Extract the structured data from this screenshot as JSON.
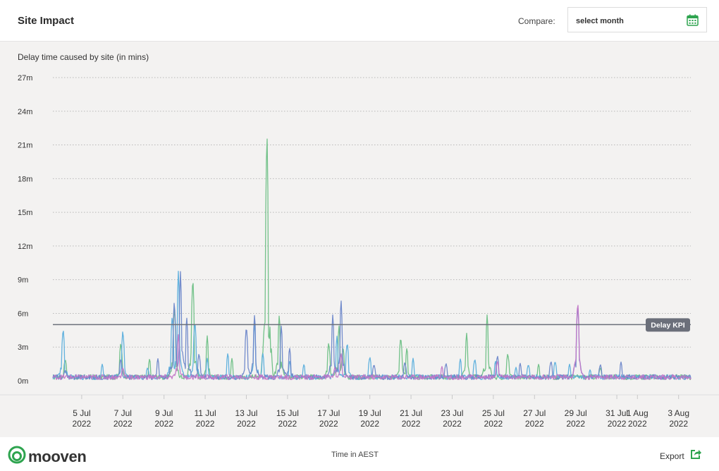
{
  "header": {
    "title": "Site Impact",
    "compare_label": "Compare:",
    "month_select": {
      "value": "select month",
      "icon": "calendar-icon"
    }
  },
  "chart_data": {
    "type": "line",
    "title": "Delay time caused by site (in mins)",
    "y_ticks": [
      "27m",
      "24m",
      "21m",
      "18m",
      "15m",
      "12m",
      "9m",
      "6m",
      "3m",
      "0m"
    ],
    "ylim": [
      0,
      27
    ],
    "x_ticks": [
      {
        "day": "5 Jul",
        "year": "2022"
      },
      {
        "day": "7 Jul",
        "year": "2022"
      },
      {
        "day": "9 Jul",
        "year": "2022"
      },
      {
        "day": "11 Jul",
        "year": "2022"
      },
      {
        "day": "13 Jul",
        "year": "2022"
      },
      {
        "day": "15 Jul",
        "year": "2022"
      },
      {
        "day": "17 Jul",
        "year": "2022"
      },
      {
        "day": "19 Jul",
        "year": "2022"
      },
      {
        "day": "21 Jul",
        "year": "2022"
      },
      {
        "day": "23 Jul",
        "year": "2022"
      },
      {
        "day": "25 Jul",
        "year": "2022"
      },
      {
        "day": "27 Jul",
        "year": "2022"
      },
      {
        "day": "29 Jul",
        "year": "2022"
      },
      {
        "day": "31 Jul",
        "year": "2022"
      },
      {
        "day": "1 Aug",
        "year": "2022"
      },
      {
        "day": "3 Aug",
        "year": "2022"
      }
    ],
    "grid": true,
    "kpi": {
      "label": "Delay KPI",
      "value": 5
    },
    "series": [
      {
        "color": "#6bbf84",
        "peaks": [
          [
            0.6,
            2
          ],
          [
            3.3,
            3.5
          ],
          [
            4.7,
            2
          ],
          [
            5.9,
            6.8
          ],
          [
            6.8,
            9.5
          ],
          [
            7.5,
            4
          ],
          [
            8.7,
            2
          ],
          [
            10.4,
            23
          ],
          [
            11,
            6
          ],
          [
            13.4,
            3.5
          ],
          [
            13.9,
            5
          ],
          [
            14.1,
            3
          ],
          [
            16.9,
            4
          ],
          [
            17.2,
            3
          ],
          [
            20.1,
            4.3
          ],
          [
            21.1,
            6
          ],
          [
            22.1,
            2.5
          ],
          [
            23.6,
            1.5
          ],
          [
            26.6,
            1.2
          ]
        ]
      },
      {
        "color": "#5aaedc",
        "peaks": [
          [
            0.5,
            4.8
          ],
          [
            2.4,
            1.5
          ],
          [
            3.4,
            4.6
          ],
          [
            4.6,
            1.2
          ],
          [
            5.8,
            6
          ],
          [
            6.1,
            10
          ],
          [
            6.9,
            5.5
          ],
          [
            7.5,
            2
          ],
          [
            8.5,
            2.5
          ],
          [
            9.8,
            5.3
          ],
          [
            10.2,
            2.5
          ],
          [
            11.5,
            1.8
          ],
          [
            12.2,
            1.5
          ],
          [
            13.8,
            4
          ],
          [
            14.3,
            3.5
          ],
          [
            15.4,
            2.2
          ],
          [
            17.5,
            2
          ],
          [
            19.8,
            2
          ],
          [
            20.5,
            2
          ],
          [
            21.5,
            1.8
          ],
          [
            22.5,
            1.2
          ],
          [
            23.1,
            1.5
          ],
          [
            24.4,
            1.8
          ],
          [
            25.1,
            1.5
          ],
          [
            26.1,
            1
          ]
        ]
      },
      {
        "color": "#6b86c9",
        "peaks": [
          [
            0.6,
            1
          ],
          [
            3.3,
            2
          ],
          [
            5.1,
            2
          ],
          [
            5.9,
            7.3
          ],
          [
            6.2,
            9.8
          ],
          [
            6.5,
            5.8
          ],
          [
            7.1,
            2.5
          ],
          [
            9.4,
            5
          ],
          [
            9.8,
            6
          ],
          [
            11.1,
            5
          ],
          [
            11.5,
            3
          ],
          [
            13.6,
            6
          ],
          [
            14,
            7.4
          ],
          [
            15.6,
            1.5
          ],
          [
            17.1,
            1.7
          ],
          [
            19.1,
            1.6
          ],
          [
            21.6,
            2.3
          ],
          [
            22.7,
            1.6
          ],
          [
            24.2,
            1.8
          ],
          [
            25.5,
            7
          ],
          [
            26.6,
            1.5
          ],
          [
            27.6,
            1.7
          ]
        ]
      },
      {
        "color": "#c277c7",
        "peaks": [
          [
            3.4,
            1.2
          ],
          [
            6.1,
            4.2
          ],
          [
            13.7,
            1.2
          ],
          [
            14,
            2.5
          ],
          [
            18.9,
            1.3
          ],
          [
            21.6,
            1.8
          ],
          [
            25.5,
            7.3
          ]
        ]
      }
    ]
  },
  "footer": {
    "brand": "mooven",
    "logo_icon": "mooven-logo-icon",
    "time_label": "Time in AEST",
    "export_label": "Export",
    "export_icon": "export-icon"
  }
}
